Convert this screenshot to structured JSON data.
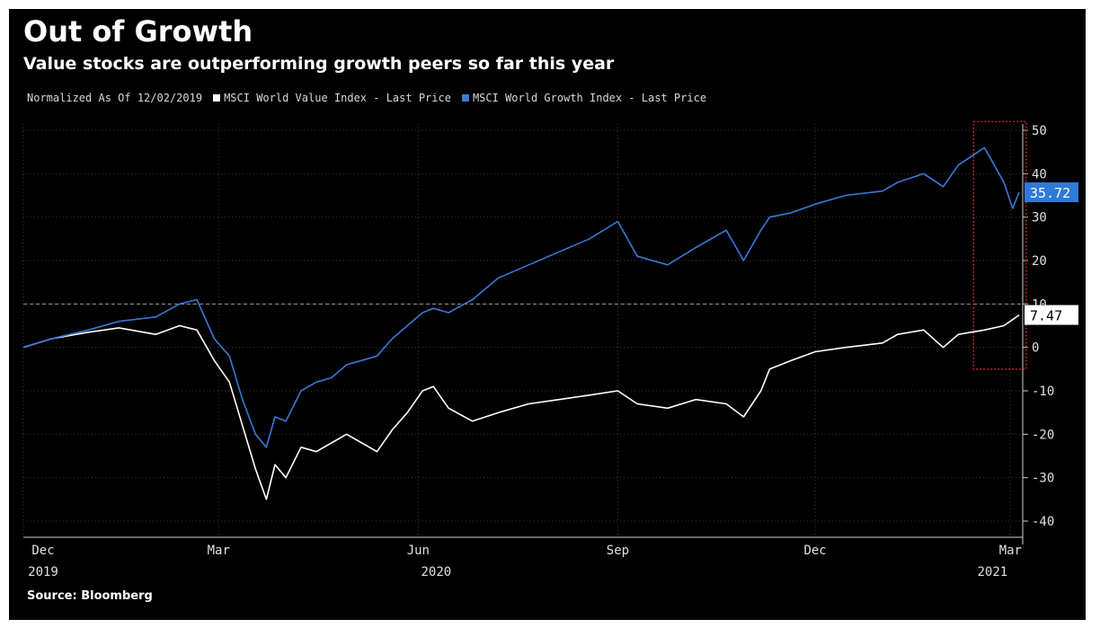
{
  "title": "Out of Growth",
  "subtitle": "Value stocks are outperforming growth peers so far this year",
  "legend": {
    "normalized_label": "Normalized As Of 12/02/2019",
    "series_labels": [
      "MSCI World Value Index - Last Price",
      "MSCI World Growth Index - Last Price"
    ]
  },
  "source": "Source: Bloomberg",
  "colors": {
    "background": "#000000",
    "value_series": "#ffffff",
    "growth_series": "#3a78d8",
    "highlight_box": "#b8262b",
    "grid": "#3a3a3a"
  },
  "chart_data": {
    "type": "line",
    "title": "Out of Growth",
    "subtitle": "Value stocks are outperforming growth peers so far this year",
    "xlabel": "",
    "ylabel": "",
    "ylim": [
      -40,
      50
    ],
    "yticks": [
      50,
      40,
      30,
      20,
      10,
      0,
      -10,
      -20,
      -30,
      -40
    ],
    "x_range": [
      "2019-12-02",
      "2021-03-05"
    ],
    "x_ticks": [
      {
        "date": "2019-12-01",
        "label": "Dec",
        "sub": "2019"
      },
      {
        "date": "2020-03-01",
        "label": "Mar",
        "sub": ""
      },
      {
        "date": "2020-06-01",
        "label": "Jun",
        "sub": "2020"
      },
      {
        "date": "2020-09-01",
        "label": "Sep",
        "sub": ""
      },
      {
        "date": "2020-12-01",
        "label": "Dec",
        "sub": ""
      },
      {
        "date": "2021-03-01",
        "label": "Mar",
        "sub": "2021"
      }
    ],
    "grid": true,
    "legend_position": "top-left",
    "series": [
      {
        "name": "MSCI World Value Index - Last Price",
        "color": "#ffffff",
        "last_value": 7.47,
        "points": [
          [
            "2019-12-02",
            0
          ],
          [
            "2019-12-15",
            2
          ],
          [
            "2020-01-01",
            3.5
          ],
          [
            "2020-01-15",
            4.5
          ],
          [
            "2020-02-01",
            3
          ],
          [
            "2020-02-12",
            5
          ],
          [
            "2020-02-20",
            4
          ],
          [
            "2020-02-28",
            -3
          ],
          [
            "2020-03-06",
            -8
          ],
          [
            "2020-03-12",
            -18
          ],
          [
            "2020-03-18",
            -28
          ],
          [
            "2020-03-23",
            -35
          ],
          [
            "2020-03-27",
            -27
          ],
          [
            "2020-04-01",
            -30
          ],
          [
            "2020-04-08",
            -23
          ],
          [
            "2020-04-15",
            -24
          ],
          [
            "2020-04-22",
            -22
          ],
          [
            "2020-04-29",
            -20
          ],
          [
            "2020-05-06",
            -22
          ],
          [
            "2020-05-13",
            -24
          ],
          [
            "2020-05-20",
            -19
          ],
          [
            "2020-05-27",
            -15
          ],
          [
            "2020-06-03",
            -10
          ],
          [
            "2020-06-08",
            -9
          ],
          [
            "2020-06-15",
            -14
          ],
          [
            "2020-06-26",
            -17
          ],
          [
            "2020-07-08",
            -15
          ],
          [
            "2020-07-22",
            -13
          ],
          [
            "2020-08-05",
            -12
          ],
          [
            "2020-08-19",
            -11
          ],
          [
            "2020-09-01",
            -10
          ],
          [
            "2020-09-10",
            -13
          ],
          [
            "2020-09-24",
            -14
          ],
          [
            "2020-10-07",
            -12
          ],
          [
            "2020-10-21",
            -13
          ],
          [
            "2020-10-29",
            -16
          ],
          [
            "2020-11-06",
            -10
          ],
          [
            "2020-11-10",
            -5
          ],
          [
            "2020-11-20",
            -3
          ],
          [
            "2020-12-01",
            -1
          ],
          [
            "2020-12-15",
            0
          ],
          [
            "2021-01-01",
            1
          ],
          [
            "2021-01-08",
            3
          ],
          [
            "2021-01-20",
            4
          ],
          [
            "2021-01-29",
            0
          ],
          [
            "2021-02-05",
            3
          ],
          [
            "2021-02-17",
            4
          ],
          [
            "2021-02-26",
            5
          ],
          [
            "2021-03-05",
            7.47
          ]
        ]
      },
      {
        "name": "MSCI World Growth Index - Last Price",
        "color": "#3a78d8",
        "last_value": 35.72,
        "points": [
          [
            "2019-12-02",
            0
          ],
          [
            "2019-12-15",
            2
          ],
          [
            "2020-01-01",
            4
          ],
          [
            "2020-01-15",
            6
          ],
          [
            "2020-02-01",
            7
          ],
          [
            "2020-02-12",
            10
          ],
          [
            "2020-02-20",
            11
          ],
          [
            "2020-02-28",
            2
          ],
          [
            "2020-03-06",
            -2
          ],
          [
            "2020-03-12",
            -12
          ],
          [
            "2020-03-18",
            -20
          ],
          [
            "2020-03-23",
            -23
          ],
          [
            "2020-03-27",
            -16
          ],
          [
            "2020-04-01",
            -17
          ],
          [
            "2020-04-08",
            -10
          ],
          [
            "2020-04-15",
            -8
          ],
          [
            "2020-04-22",
            -7
          ],
          [
            "2020-04-29",
            -4
          ],
          [
            "2020-05-06",
            -3
          ],
          [
            "2020-05-13",
            -2
          ],
          [
            "2020-05-20",
            2
          ],
          [
            "2020-05-27",
            5
          ],
          [
            "2020-06-03",
            8
          ],
          [
            "2020-06-08",
            9
          ],
          [
            "2020-06-15",
            8
          ],
          [
            "2020-06-26",
            11
          ],
          [
            "2020-07-08",
            16
          ],
          [
            "2020-07-22",
            19
          ],
          [
            "2020-08-05",
            22
          ],
          [
            "2020-08-19",
            25
          ],
          [
            "2020-09-01",
            29
          ],
          [
            "2020-09-10",
            21
          ],
          [
            "2020-09-24",
            19
          ],
          [
            "2020-10-07",
            23
          ],
          [
            "2020-10-21",
            27
          ],
          [
            "2020-10-29",
            20
          ],
          [
            "2020-11-06",
            27
          ],
          [
            "2020-11-10",
            30
          ],
          [
            "2020-11-20",
            31
          ],
          [
            "2020-12-01",
            33
          ],
          [
            "2020-12-15",
            35
          ],
          [
            "2021-01-01",
            36
          ],
          [
            "2021-01-08",
            38
          ],
          [
            "2021-01-20",
            40
          ],
          [
            "2021-01-29",
            37
          ],
          [
            "2021-02-05",
            42
          ],
          [
            "2021-02-17",
            46
          ],
          [
            "2021-02-26",
            38
          ],
          [
            "2021-03-02",
            32
          ],
          [
            "2021-03-05",
            35.72
          ]
        ]
      }
    ],
    "highlight": {
      "from": "2021-02-12",
      "to": "2021-03-05",
      "y_from": -5,
      "y_to": 52,
      "color": "#b8262b"
    },
    "reference_line": {
      "y": 10
    }
  }
}
